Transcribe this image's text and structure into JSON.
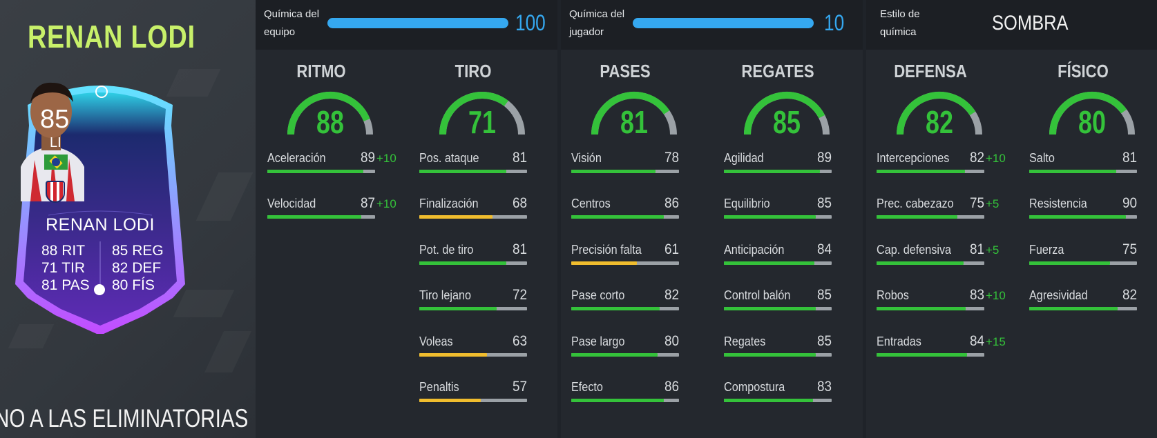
{
  "player": {
    "title": "RENAN LODI",
    "ticker_text": "NO A LAS ELIMINATORIAS DE"
  },
  "card": {
    "rating": "85",
    "position": "LI",
    "name": "RENAN LODI",
    "attrs": [
      {
        "value": "88",
        "label": "RIT"
      },
      {
        "value": "85",
        "label": "REG"
      },
      {
        "value": "71",
        "label": "TIR"
      },
      {
        "value": "82",
        "label": "DEF"
      },
      {
        "value": "81",
        "label": "PAS"
      },
      {
        "value": "80",
        "label": "FÍS"
      }
    ]
  },
  "chemistry": {
    "team_label_line1": "Química del",
    "team_label_line2": "equipo",
    "team_value": "100",
    "team_fraction": 1.0,
    "player_label_line1": "Química del",
    "player_label_line2": "jugador",
    "player_value": "10",
    "player_fraction": 1.0,
    "style_label_line1": "Estilo de",
    "style_label_line2": "química",
    "style_value": "SOMBRA"
  },
  "colors": {
    "green": "#34c23a",
    "yellow": "#f0bd2e",
    "blue": "#35a8f0",
    "gray": "#9ba1a6",
    "title_green": "#c8f06a"
  },
  "categories": [
    {
      "title": "RITMO",
      "value": "88",
      "stats": [
        {
          "name": "Aceleración",
          "value": "89",
          "bonus": "+10"
        },
        {
          "name": "Velocidad",
          "value": "87",
          "bonus": "+10"
        }
      ]
    },
    {
      "title": "TIRO",
      "value": "71",
      "stats": [
        {
          "name": "Pos. ataque",
          "value": "81",
          "bonus": ""
        },
        {
          "name": "Finalización",
          "value": "68",
          "bonus": ""
        },
        {
          "name": "Pot. de tiro",
          "value": "81",
          "bonus": ""
        },
        {
          "name": "Tiro lejano",
          "value": "72",
          "bonus": ""
        },
        {
          "name": "Voleas",
          "value": "63",
          "bonus": ""
        },
        {
          "name": "Penaltis",
          "value": "57",
          "bonus": ""
        }
      ]
    },
    {
      "title": "PASES",
      "value": "81",
      "stats": [
        {
          "name": "Visión",
          "value": "78",
          "bonus": ""
        },
        {
          "name": "Centros",
          "value": "86",
          "bonus": ""
        },
        {
          "name": "Precisión falta",
          "value": "61",
          "bonus": ""
        },
        {
          "name": "Pase corto",
          "value": "82",
          "bonus": ""
        },
        {
          "name": "Pase largo",
          "value": "80",
          "bonus": ""
        },
        {
          "name": "Efecto",
          "value": "86",
          "bonus": ""
        }
      ]
    },
    {
      "title": "REGATES",
      "value": "85",
      "stats": [
        {
          "name": "Agilidad",
          "value": "89",
          "bonus": ""
        },
        {
          "name": "Equilibrio",
          "value": "85",
          "bonus": ""
        },
        {
          "name": "Anticipación",
          "value": "84",
          "bonus": ""
        },
        {
          "name": "Control balón",
          "value": "85",
          "bonus": ""
        },
        {
          "name": "Regates",
          "value": "85",
          "bonus": ""
        },
        {
          "name": "Compostura",
          "value": "83",
          "bonus": ""
        }
      ]
    },
    {
      "title": "DEFENSA",
      "value": "82",
      "stats": [
        {
          "name": "Intercepciones",
          "value": "82",
          "bonus": "+10"
        },
        {
          "name": "Prec. cabezazo",
          "value": "75",
          "bonus": "+5"
        },
        {
          "name": "Cap. defensiva",
          "value": "81",
          "bonus": "+5"
        },
        {
          "name": "Robos",
          "value": "83",
          "bonus": "+10"
        },
        {
          "name": "Entradas",
          "value": "84",
          "bonus": "+15"
        }
      ]
    },
    {
      "title": "FÍSICO",
      "value": "80",
      "stats": [
        {
          "name": "Salto",
          "value": "81",
          "bonus": ""
        },
        {
          "name": "Resistencia",
          "value": "90",
          "bonus": ""
        },
        {
          "name": "Fuerza",
          "value": "75",
          "bonus": ""
        },
        {
          "name": "Agresividad",
          "value": "82",
          "bonus": ""
        }
      ]
    }
  ]
}
